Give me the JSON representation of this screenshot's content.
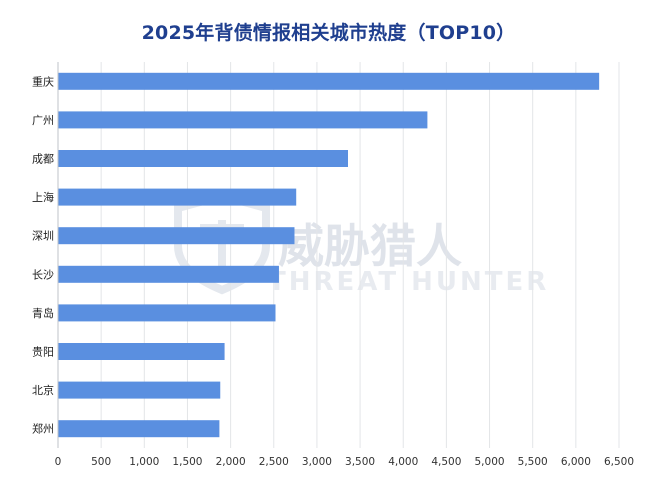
{
  "chart_data": {
    "type": "bar",
    "orientation": "horizontal",
    "title": "2025年背债情报相关城市热度（TOP10）",
    "categories": [
      "重庆",
      "广州",
      "成都",
      "上海",
      "深圳",
      "长沙",
      "青岛",
      "贵阳",
      "北京",
      "郑州"
    ],
    "values": [
      6270,
      4280,
      3360,
      2760,
      2740,
      2560,
      2520,
      1930,
      1880,
      1870
    ],
    "xlim": [
      0,
      6500
    ],
    "xticks": [
      0,
      500,
      1000,
      1500,
      2000,
      2500,
      3000,
      3500,
      4000,
      4500,
      5000,
      5500,
      6000,
      6500
    ],
    "xtick_labels": [
      "0",
      "500",
      "1,000",
      "1,500",
      "2,000",
      "2,500",
      "3,000",
      "3,500",
      "4,000",
      "4,500",
      "5,000",
      "5,500",
      "6,000",
      "6,500"
    ],
    "grid": true,
    "legend": "none",
    "bar_color": "#5a8fe0"
  },
  "watermark": {
    "main": "威胁猎人",
    "sub": "THREAT HUNTER"
  }
}
